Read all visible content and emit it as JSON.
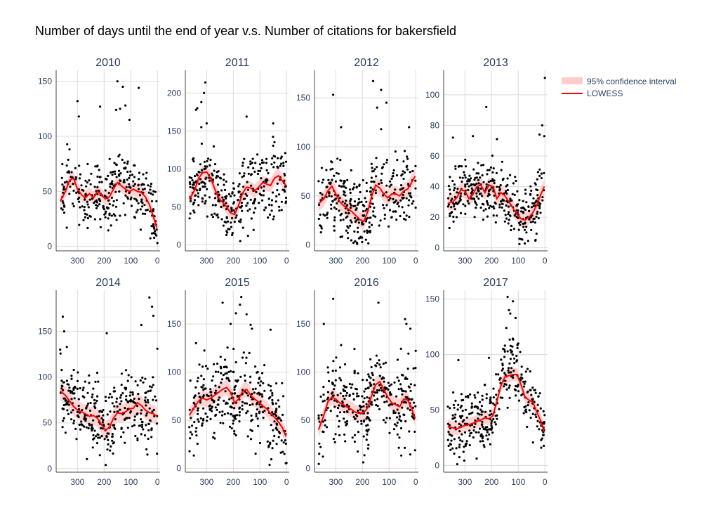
{
  "chart_data": {
    "type": "scatter",
    "title": "Number of days until the end of year v.s. Number of citations for bakersfield",
    "legend": {
      "placement": "top-right",
      "items": [
        {
          "name": "95% confidence interval",
          "color": "#ffcccc"
        },
        {
          "name": "LOWESS",
          "color": "#ff0000"
        }
      ]
    },
    "x_range": [
      380,
      -10
    ],
    "x_ticks": [
      300,
      200,
      100,
      0
    ],
    "grid": true,
    "colors": {
      "points": "#000000",
      "lowess": "#ff0000",
      "ci": "#ffcccc",
      "grid": "#dcdcdc",
      "axis": "#444444"
    },
    "panels": [
      {
        "title": "2010",
        "y_range": [
          -4,
          160
        ],
        "y_ticks": [
          0,
          50,
          100,
          150
        ],
        "lowess": [
          [
            365,
            41
          ],
          [
            345,
            50
          ],
          [
            330,
            60
          ],
          [
            315,
            62
          ],
          [
            300,
            52
          ],
          [
            285,
            47
          ],
          [
            270,
            44
          ],
          [
            255,
            48
          ],
          [
            240,
            44
          ],
          [
            225,
            50
          ],
          [
            210,
            47
          ],
          [
            195,
            43
          ],
          [
            180,
            45
          ],
          [
            165,
            52
          ],
          [
            150,
            58
          ],
          [
            135,
            55
          ],
          [
            120,
            52
          ],
          [
            105,
            50
          ],
          [
            90,
            52
          ],
          [
            75,
            50
          ],
          [
            60,
            49
          ],
          [
            45,
            45
          ],
          [
            30,
            38
          ],
          [
            15,
            27
          ],
          [
            2,
            17
          ]
        ],
        "ci_half": 6,
        "points": {
          "seed": 11,
          "n": 300,
          "spread": 18,
          "outliers": [
            [
              150,
              150
            ],
            [
              130,
              145
            ],
            [
              120,
              128
            ],
            [
              105,
              115
            ],
            [
              70,
              144
            ],
            [
              300,
              132
            ],
            [
              295,
              118
            ],
            [
              215,
              127
            ],
            [
              155,
              124
            ],
            [
              140,
              125
            ]
          ]
        }
      },
      {
        "title": "2011",
        "y_range": [
          -8,
          230
        ],
        "y_ticks": [
          0,
          50,
          100,
          150,
          200
        ],
        "lowess": [
          [
            365,
            60
          ],
          [
            345,
            72
          ],
          [
            330,
            88
          ],
          [
            315,
            95
          ],
          [
            300,
            96
          ],
          [
            285,
            88
          ],
          [
            270,
            74
          ],
          [
            255,
            62
          ],
          [
            240,
            56
          ],
          [
            225,
            50
          ],
          [
            210,
            42
          ],
          [
            195,
            40
          ],
          [
            180,
            52
          ],
          [
            165,
            68
          ],
          [
            150,
            76
          ],
          [
            135,
            75
          ],
          [
            120,
            71
          ],
          [
            105,
            76
          ],
          [
            90,
            82
          ],
          [
            75,
            80
          ],
          [
            60,
            78
          ],
          [
            45,
            88
          ],
          [
            30,
            91
          ],
          [
            15,
            84
          ],
          [
            2,
            78
          ]
        ],
        "ci_half": 9,
        "points": {
          "seed": 22,
          "n": 320,
          "spread": 32,
          "outliers": [
            [
              305,
              214
            ],
            [
              310,
              200
            ],
            [
              320,
              188
            ],
            [
              335,
              180
            ],
            [
              340,
              178
            ],
            [
              300,
              160
            ],
            [
              150,
              169
            ],
            [
              50,
              160
            ],
            [
              320,
              155
            ]
          ]
        }
      },
      {
        "title": "2012",
        "y_range": [
          -6,
          178
        ],
        "y_ticks": [
          0,
          50,
          100,
          150
        ],
        "lowess": [
          [
            365,
            42
          ],
          [
            345,
            47
          ],
          [
            330,
            55
          ],
          [
            315,
            60
          ],
          [
            300,
            52
          ],
          [
            285,
            44
          ],
          [
            270,
            40
          ],
          [
            255,
            37
          ],
          [
            240,
            34
          ],
          [
            225,
            30
          ],
          [
            210,
            26
          ],
          [
            195,
            24
          ],
          [
            180,
            34
          ],
          [
            165,
            50
          ],
          [
            150,
            61
          ],
          [
            135,
            58
          ],
          [
            120,
            52
          ],
          [
            105,
            48
          ],
          [
            90,
            52
          ],
          [
            75,
            52
          ],
          [
            60,
            50
          ],
          [
            45,
            55
          ],
          [
            30,
            57
          ],
          [
            15,
            64
          ],
          [
            2,
            70
          ]
        ],
        "ci_half": 8,
        "points": {
          "seed": 33,
          "n": 310,
          "spread": 26,
          "outliers": [
            [
              160,
              167
            ],
            [
              130,
              158
            ],
            [
              110,
              145
            ],
            [
              310,
              153
            ],
            [
              145,
              140
            ],
            [
              280,
              120
            ],
            [
              25,
              120
            ],
            [
              130,
              118
            ]
          ]
        }
      },
      {
        "title": "2013",
        "y_range": [
          -2,
          116
        ],
        "y_ticks": [
          0,
          20,
          40,
          60,
          80,
          100
        ],
        "lowess": [
          [
            365,
            29
          ],
          [
            345,
            30
          ],
          [
            330,
            33
          ],
          [
            315,
            38
          ],
          [
            300,
            37
          ],
          [
            285,
            32
          ],
          [
            270,
            35
          ],
          [
            255,
            40
          ],
          [
            240,
            41
          ],
          [
            225,
            36
          ],
          [
            210,
            41
          ],
          [
            195,
            40
          ],
          [
            180,
            32
          ],
          [
            165,
            36
          ],
          [
            150,
            34
          ],
          [
            135,
            30
          ],
          [
            120,
            26
          ],
          [
            105,
            22
          ],
          [
            90,
            19
          ],
          [
            75,
            18
          ],
          [
            60,
            20
          ],
          [
            45,
            23
          ],
          [
            30,
            28
          ],
          [
            15,
            35
          ],
          [
            2,
            40
          ]
        ],
        "ci_half": 5,
        "points": {
          "seed": 44,
          "n": 330,
          "spread": 12,
          "outliers": [
            [
              0,
              111
            ],
            [
              220,
              92
            ],
            [
              10,
              80
            ],
            [
              345,
              72
            ],
            [
              270,
              73
            ],
            [
              180,
              71
            ],
            [
              20,
              74
            ],
            [
              2,
              73
            ]
          ]
        }
      },
      {
        "title": "2014",
        "y_range": [
          -4,
          195
        ],
        "y_ticks": [
          0,
          50,
          100,
          150
        ],
        "lowess": [
          [
            365,
            85
          ],
          [
            345,
            80
          ],
          [
            330,
            74
          ],
          [
            315,
            68
          ],
          [
            300,
            64
          ],
          [
            285,
            62
          ],
          [
            270,
            60
          ],
          [
            255,
            57
          ],
          [
            240,
            58
          ],
          [
            225,
            55
          ],
          [
            210,
            48
          ],
          [
            195,
            42
          ],
          [
            180,
            45
          ],
          [
            165,
            55
          ],
          [
            150,
            61
          ],
          [
            135,
            60
          ],
          [
            120,
            62
          ],
          [
            105,
            65
          ],
          [
            90,
            66
          ],
          [
            75,
            72
          ],
          [
            60,
            69
          ],
          [
            45,
            64
          ],
          [
            30,
            61
          ],
          [
            15,
            60
          ],
          [
            2,
            57
          ]
        ],
        "ci_half": 10,
        "points": {
          "seed": 55,
          "n": 320,
          "spread": 26,
          "outliers": [
            [
              355,
              166
            ],
            [
              350,
              150
            ],
            [
              30,
              187
            ],
            [
              20,
              177
            ],
            [
              15,
              167
            ],
            [
              60,
              157
            ],
            [
              190,
              148
            ],
            [
              365,
              130
            ],
            [
              0,
              131
            ],
            [
              340,
              133
            ]
          ]
        }
      },
      {
        "title": "2015",
        "y_range": [
          -4,
          185
        ],
        "y_ticks": [
          0,
          50,
          100,
          150
        ],
        "lowess": [
          [
            365,
            55
          ],
          [
            345,
            64
          ],
          [
            330,
            70
          ],
          [
            315,
            73
          ],
          [
            300,
            71
          ],
          [
            285,
            73
          ],
          [
            270,
            76
          ],
          [
            255,
            79
          ],
          [
            240,
            82
          ],
          [
            225,
            84
          ],
          [
            210,
            79
          ],
          [
            195,
            68
          ],
          [
            180,
            72
          ],
          [
            165,
            80
          ],
          [
            150,
            82
          ],
          [
            135,
            76
          ],
          [
            120,
            72
          ],
          [
            105,
            69
          ],
          [
            90,
            65
          ],
          [
            75,
            62
          ],
          [
            60,
            57
          ],
          [
            45,
            53
          ],
          [
            30,
            48
          ],
          [
            15,
            42
          ],
          [
            2,
            33
          ]
        ],
        "ci_half": 8,
        "points": {
          "seed": 66,
          "n": 330,
          "spread": 27,
          "outliers": [
            [
              170,
              178
            ],
            [
              175,
              170
            ],
            [
              190,
              161
            ],
            [
              150,
              160
            ],
            [
              240,
              172
            ],
            [
              210,
              150
            ],
            [
              135,
              149
            ],
            [
              60,
              144
            ],
            [
              130,
              145
            ],
            [
              340,
              130
            ]
          ]
        }
      },
      {
        "title": "2016",
        "y_range": [
          -4,
          185
        ],
        "y_ticks": [
          0,
          50,
          100,
          150
        ],
        "lowess": [
          [
            365,
            40
          ],
          [
            345,
            55
          ],
          [
            330,
            69
          ],
          [
            315,
            74
          ],
          [
            300,
            72
          ],
          [
            285,
            68
          ],
          [
            270,
            66
          ],
          [
            255,
            63
          ],
          [
            240,
            61
          ],
          [
            225,
            58
          ],
          [
            210,
            57
          ],
          [
            195,
            58
          ],
          [
            180,
            63
          ],
          [
            165,
            76
          ],
          [
            150,
            87
          ],
          [
            135,
            90
          ],
          [
            120,
            82
          ],
          [
            105,
            74
          ],
          [
            90,
            68
          ],
          [
            75,
            66
          ],
          [
            60,
            64
          ],
          [
            45,
            72
          ],
          [
            30,
            71
          ],
          [
            15,
            62
          ],
          [
            2,
            52
          ]
        ],
        "ci_half": 8,
        "points": {
          "seed": 77,
          "n": 330,
          "spread": 27,
          "outliers": [
            [
              310,
              176
            ],
            [
              140,
              172
            ],
            [
              40,
              155
            ],
            [
              35,
              150
            ],
            [
              345,
              150
            ],
            [
              20,
              145
            ],
            [
              0,
              122
            ],
            [
              280,
              128
            ],
            [
              230,
              124
            ]
          ]
        }
      },
      {
        "title": "2017",
        "y_range": [
          -6,
          158
        ],
        "y_ticks": [
          0,
          50,
          100,
          150
        ],
        "lowess": [
          [
            365,
            35
          ],
          [
            345,
            34
          ],
          [
            330,
            33
          ],
          [
            315,
            35
          ],
          [
            300,
            36
          ],
          [
            285,
            37
          ],
          [
            270,
            38
          ],
          [
            255,
            40
          ],
          [
            240,
            41
          ],
          [
            225,
            43
          ],
          [
            210,
            42
          ],
          [
            195,
            45
          ],
          [
            180,
            58
          ],
          [
            165,
            72
          ],
          [
            150,
            80
          ],
          [
            135,
            81
          ],
          [
            120,
            82
          ],
          [
            105,
            82
          ],
          [
            90,
            73
          ],
          [
            75,
            62
          ],
          [
            60,
            59
          ],
          [
            45,
            57
          ],
          [
            30,
            48
          ],
          [
            15,
            40
          ],
          [
            2,
            30
          ]
        ],
        "ci_half": 6,
        "points": {
          "seed": 88,
          "n": 330,
          "spread": 19,
          "outliers": [
            [
              140,
              152
            ],
            [
              135,
              140
            ],
            [
              130,
              137
            ],
            [
              120,
              148
            ],
            [
              110,
              133
            ],
            [
              145,
              124
            ],
            [
              100,
              110
            ],
            [
              325,
              95
            ],
            [
              210,
              97
            ]
          ]
        }
      }
    ]
  }
}
